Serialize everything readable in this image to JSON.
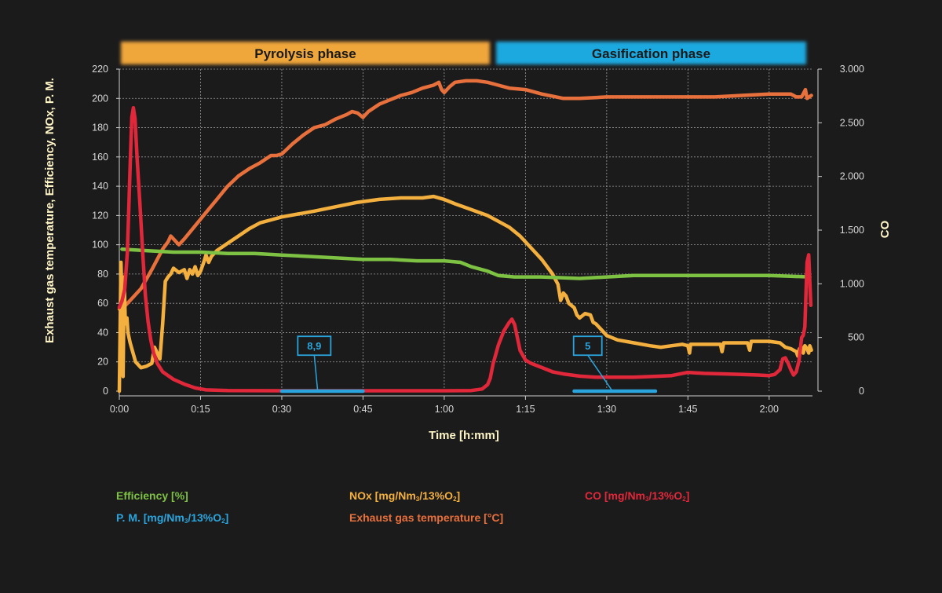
{
  "phases": {
    "pyrolysis": "Pyrolysis phase",
    "gasification": "Gasification phase"
  },
  "colors": {
    "background": "#1c1b1c",
    "efficiency": "#7dc242",
    "nox": "#f4b03e",
    "co": "#e0283a",
    "pm": "#2aa4dc",
    "exhaust": "#e8703c",
    "pyrolysis_band": "#efa63a",
    "gasification_band": "#1aa9df"
  },
  "chart_data": {
    "type": "line",
    "xlabel": "Time [h:mm]",
    "ylabel_left": "Exhaust gas temperature, Efficiency, NOx, P. M.",
    "ylabel_right": "CO",
    "x_unit": "minutes",
    "xlim": [
      0,
      128
    ],
    "ylim_left": [
      0,
      220
    ],
    "ylim_right": [
      0,
      3000
    ],
    "x_ticks": [
      {
        "v": 0,
        "label": "0:00"
      },
      {
        "v": 15,
        "label": "0:15"
      },
      {
        "v": 30,
        "label": "0:30"
      },
      {
        "v": 45,
        "label": "0:45"
      },
      {
        "v": 60,
        "label": "1:00"
      },
      {
        "v": 75,
        "label": "1:15"
      },
      {
        "v": 90,
        "label": "1:30"
      },
      {
        "v": 105,
        "label": "1:45"
      },
      {
        "v": 120,
        "label": "2:00"
      }
    ],
    "y_ticks_left": [
      {
        "v": 0,
        "label": "0"
      },
      {
        "v": 20,
        "label": "20"
      },
      {
        "v": 40,
        "label": "40"
      },
      {
        "v": 60,
        "label": "60"
      },
      {
        "v": 80,
        "label": "80"
      },
      {
        "v": 100,
        "label": "100"
      },
      {
        "v": 120,
        "label": "120"
      },
      {
        "v": 140,
        "label": "140"
      },
      {
        "v": 160,
        "label": "160"
      },
      {
        "v": 180,
        "label": "180"
      },
      {
        "v": 200,
        "label": "200"
      },
      {
        "v": 220,
        "label": "220"
      }
    ],
    "y_ticks_right": [
      {
        "v": 0,
        "label": "0"
      },
      {
        "v": 500,
        "label": "500"
      },
      {
        "v": 1000,
        "label": "1.000"
      },
      {
        "v": 1500,
        "label": "1.500"
      },
      {
        "v": 2000,
        "label": "2.000"
      },
      {
        "v": 2500,
        "label": "2.500"
      },
      {
        "v": 3000,
        "label": "3.000"
      }
    ],
    "phases": [
      {
        "label": "Pyrolysis phase",
        "x_start": 0,
        "x_end": 69
      },
      {
        "label": "Gasification phase",
        "x_start": 69,
        "x_end": 128
      }
    ],
    "grid": true,
    "series": [
      {
        "name": "Exhaust gas temperature [°C]",
        "key": "exhaust",
        "axis": "left",
        "points": [
          [
            0,
            56
          ],
          [
            1,
            58
          ],
          [
            2,
            62
          ],
          [
            4,
            70
          ],
          [
            6,
            83
          ],
          [
            7,
            90
          ],
          [
            8,
            97
          ],
          [
            9,
            102
          ],
          [
            9.5,
            106
          ],
          [
            10,
            104
          ],
          [
            11,
            100
          ],
          [
            12,
            104
          ],
          [
            14,
            113
          ],
          [
            16,
            122
          ],
          [
            18,
            131
          ],
          [
            20,
            140
          ],
          [
            22,
            147
          ],
          [
            24,
            152
          ],
          [
            26,
            156
          ],
          [
            28,
            161
          ],
          [
            29,
            161
          ],
          [
            30,
            162
          ],
          [
            32,
            169
          ],
          [
            34,
            175
          ],
          [
            36,
            180
          ],
          [
            38,
            182
          ],
          [
            40,
            186
          ],
          [
            42,
            189
          ],
          [
            43,
            191
          ],
          [
            44,
            190
          ],
          [
            45,
            187
          ],
          [
            46,
            191
          ],
          [
            48,
            196
          ],
          [
            50,
            199
          ],
          [
            52,
            202
          ],
          [
            54,
            204
          ],
          [
            56,
            207
          ],
          [
            58,
            209
          ],
          [
            59,
            211
          ],
          [
            59.5,
            206
          ],
          [
            60,
            204
          ],
          [
            61,
            208
          ],
          [
            62,
            211
          ],
          [
            64,
            212
          ],
          [
            66,
            212
          ],
          [
            68,
            211
          ],
          [
            70,
            209
          ],
          [
            72,
            207
          ],
          [
            75,
            206
          ],
          [
            78,
            203
          ],
          [
            82,
            200
          ],
          [
            85,
            200
          ],
          [
            90,
            201
          ],
          [
            95,
            201
          ],
          [
            100,
            201
          ],
          [
            105,
            201
          ],
          [
            110,
            201
          ],
          [
            115,
            202
          ],
          [
            120,
            203
          ],
          [
            124,
            203
          ],
          [
            125,
            201
          ],
          [
            126,
            201
          ],
          [
            126.7,
            206
          ],
          [
            127,
            200
          ],
          [
            127.8,
            202
          ]
        ]
      },
      {
        "name": "NOx [mg/Nm3/13%O2]",
        "key": "nox",
        "axis": "left",
        "points": [
          [
            0,
            0
          ],
          [
            0.3,
            88
          ],
          [
            0.5,
            62
          ],
          [
            0.7,
            10
          ],
          [
            0.9,
            78
          ],
          [
            1.1,
            46
          ],
          [
            1.4,
            50
          ],
          [
            1.6,
            40
          ],
          [
            2,
            33
          ],
          [
            3,
            20
          ],
          [
            4,
            16
          ],
          [
            5,
            17
          ],
          [
            6,
            19
          ],
          [
            6.5,
            30
          ],
          [
            7,
            26
          ],
          [
            7.5,
            22
          ],
          [
            8,
            46
          ],
          [
            8.5,
            75
          ],
          [
            9,
            78
          ],
          [
            9.5,
            80
          ],
          [
            10,
            84
          ],
          [
            11,
            81
          ],
          [
            12,
            83
          ],
          [
            12.5,
            77
          ],
          [
            13,
            83
          ],
          [
            13.5,
            80
          ],
          [
            14,
            85
          ],
          [
            14.5,
            79
          ],
          [
            15,
            82
          ],
          [
            15.5,
            87
          ],
          [
            16,
            93
          ],
          [
            16.5,
            88
          ],
          [
            17,
            92
          ],
          [
            18,
            96
          ],
          [
            20,
            101
          ],
          [
            22,
            106
          ],
          [
            24,
            111
          ],
          [
            26,
            115
          ],
          [
            28,
            117
          ],
          [
            30,
            119
          ],
          [
            33,
            121
          ],
          [
            36,
            123
          ],
          [
            40,
            126
          ],
          [
            44,
            129
          ],
          [
            48,
            131
          ],
          [
            52,
            132
          ],
          [
            56,
            132
          ],
          [
            58,
            133
          ],
          [
            60,
            131
          ],
          [
            62,
            128
          ],
          [
            65,
            124
          ],
          [
            68,
            120
          ],
          [
            70,
            116
          ],
          [
            72,
            112
          ],
          [
            74,
            106
          ],
          [
            76,
            98
          ],
          [
            78,
            90
          ],
          [
            80,
            80
          ],
          [
            81,
            73
          ],
          [
            81.5,
            62
          ],
          [
            82,
            67
          ],
          [
            82.5,
            65
          ],
          [
            83,
            60
          ],
          [
            84,
            57
          ],
          [
            84.5,
            52
          ],
          [
            85,
            50
          ],
          [
            86,
            53
          ],
          [
            87,
            52
          ],
          [
            87.5,
            47
          ],
          [
            88,
            46
          ],
          [
            89,
            42
          ],
          [
            90,
            38
          ],
          [
            92,
            35
          ],
          [
            95,
            33
          ],
          [
            98,
            31
          ],
          [
            100,
            30
          ],
          [
            102,
            31
          ],
          [
            104,
            32
          ],
          [
            105,
            31
          ],
          [
            105.3,
            26
          ],
          [
            105.5,
            32
          ],
          [
            110,
            32
          ],
          [
            111,
            32
          ],
          [
            111.3,
            27
          ],
          [
            111.6,
            33
          ],
          [
            116,
            33
          ],
          [
            116.4,
            28
          ],
          [
            116.7,
            34
          ],
          [
            120,
            34
          ],
          [
            122,
            33
          ],
          [
            123,
            30
          ],
          [
            124,
            29
          ],
          [
            125,
            27
          ],
          [
            125.3,
            24
          ],
          [
            125.6,
            29
          ],
          [
            126,
            30
          ],
          [
            126.3,
            26
          ],
          [
            126.6,
            31
          ],
          [
            127,
            29
          ],
          [
            127.3,
            26
          ],
          [
            127.5,
            31
          ],
          [
            127.8,
            28
          ]
        ]
      },
      {
        "name": "Efficiency [%]",
        "key": "efficiency",
        "axis": "left",
        "points": [
          [
            0.5,
            97
          ],
          [
            5,
            96
          ],
          [
            10,
            95
          ],
          [
            15,
            95
          ],
          [
            20,
            94
          ],
          [
            25,
            94
          ],
          [
            30,
            93
          ],
          [
            35,
            92
          ],
          [
            40,
            91
          ],
          [
            45,
            90
          ],
          [
            50,
            90
          ],
          [
            55,
            89
          ],
          [
            60,
            89
          ],
          [
            63,
            88
          ],
          [
            65,
            85
          ],
          [
            68,
            82
          ],
          [
            70,
            79
          ],
          [
            73,
            78
          ],
          [
            78,
            78
          ],
          [
            85,
            77
          ],
          [
            90,
            78
          ],
          [
            95,
            79
          ],
          [
            100,
            79
          ],
          [
            110,
            79
          ],
          [
            120,
            79
          ],
          [
            127.5,
            78
          ]
        ]
      },
      {
        "name": "CO [mg/Nm3/13%O2]",
        "key": "co",
        "axis": "right",
        "points": [
          [
            0,
            780
          ],
          [
            0.5,
            840
          ],
          [
            1,
            950
          ],
          [
            1.5,
            1300
          ],
          [
            2,
            2100
          ],
          [
            2.3,
            2550
          ],
          [
            2.6,
            2640
          ],
          [
            2.9,
            2540
          ],
          [
            3.3,
            2150
          ],
          [
            3.8,
            1750
          ],
          [
            4.3,
            1300
          ],
          [
            4.8,
            900
          ],
          [
            5.3,
            650
          ],
          [
            5.8,
            480
          ],
          [
            6.3,
            360
          ],
          [
            7,
            260
          ],
          [
            8,
            180
          ],
          [
            10,
            110
          ],
          [
            12,
            65
          ],
          [
            14,
            30
          ],
          [
            16,
            12
          ],
          [
            20,
            5
          ],
          [
            30,
            4
          ],
          [
            40,
            4
          ],
          [
            50,
            4
          ],
          [
            60,
            4
          ],
          [
            65,
            6
          ],
          [
            67,
            20
          ],
          [
            68,
            60
          ],
          [
            68.5,
            120
          ],
          [
            69,
            250
          ],
          [
            70,
            430
          ],
          [
            71,
            560
          ],
          [
            72,
            640
          ],
          [
            72.5,
            670
          ],
          [
            73,
            620
          ],
          [
            74,
            380
          ],
          [
            75,
            290
          ],
          [
            76,
            260
          ],
          [
            78,
            220
          ],
          [
            80,
            180
          ],
          [
            82,
            160
          ],
          [
            85,
            140
          ],
          [
            88,
            130
          ],
          [
            90,
            130
          ],
          [
            95,
            130
          ],
          [
            100,
            140
          ],
          [
            102,
            145
          ],
          [
            105,
            175
          ],
          [
            108,
            165
          ],
          [
            112,
            160
          ],
          [
            115,
            155
          ],
          [
            118,
            150
          ],
          [
            120,
            145
          ],
          [
            121,
            155
          ],
          [
            122,
            200
          ],
          [
            122.5,
            300
          ],
          [
            123,
            310
          ],
          [
            123.5,
            260
          ],
          [
            124,
            200
          ],
          [
            124.5,
            150
          ],
          [
            125,
            180
          ],
          [
            125.5,
            280
          ],
          [
            126,
            500
          ],
          [
            126.3,
            520
          ],
          [
            126.6,
            600
          ],
          [
            127,
            1200
          ],
          [
            127.3,
            1270
          ],
          [
            127.7,
            800
          ]
        ]
      }
    ],
    "pm_markers": [
      {
        "label": "8,9",
        "x_start": 30,
        "x_end": 45,
        "value_left": 0,
        "box_x": 36,
        "box_y": 31
      },
      {
        "label": "5",
        "x_start": 84,
        "x_end": 99,
        "value_left": 0,
        "box_x": 86.5,
        "box_y": 31
      }
    ]
  },
  "legend": {
    "efficiency": "Efficiency [%]",
    "pm_prefix": "P. M. [mg/Nm",
    "nox_prefix": "NOx [mg/Nm",
    "exhaust": "Exhaust gas temperature [°C]",
    "co_prefix": "CO [mg/Nm",
    "sub3": "3",
    "mid": "/13%O",
    "sub2": "2",
    "close": "]"
  }
}
